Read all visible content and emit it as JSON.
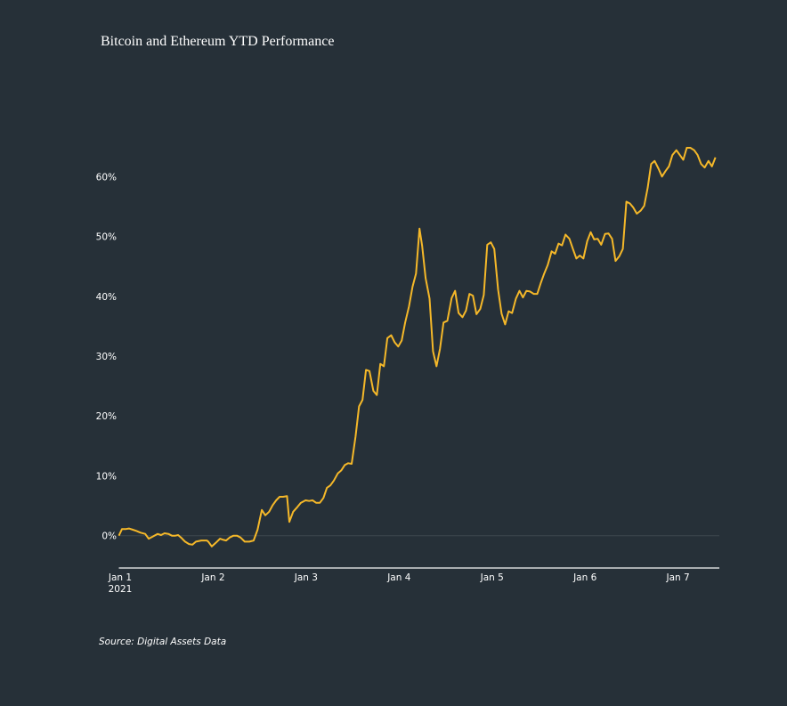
{
  "chart_data": {
    "type": "line",
    "title": "Bitcoin and Ethereum YTD Performance",
    "source": "Source: Digital Assets Data",
    "xlabel": "",
    "ylabel": "",
    "x_unit": "hours since Jan 1 2021 00:00",
    "xlim": [
      0,
      155
    ],
    "ylim": [
      -5.4,
      68
    ],
    "x_ticks": [
      {
        "value": 0,
        "label": "Jan 1",
        "sublabel": "2021"
      },
      {
        "value": 24,
        "label": "Jan 2"
      },
      {
        "value": 48,
        "label": "Jan 3"
      },
      {
        "value": 72,
        "label": "Jan 4"
      },
      {
        "value": 96,
        "label": "Jan 5"
      },
      {
        "value": 120,
        "label": "Jan 6"
      },
      {
        "value": 144,
        "label": "Jan 7"
      }
    ],
    "y_ticks": [
      {
        "value": 0,
        "label": "0%"
      },
      {
        "value": 10,
        "label": "10%"
      },
      {
        "value": 20,
        "label": "20%"
      },
      {
        "value": 30,
        "label": "30%"
      },
      {
        "value": 40,
        "label": "40%"
      },
      {
        "value": 50,
        "label": "50%"
      },
      {
        "value": 60,
        "label": "60%"
      }
    ],
    "grid": "zero line only",
    "legend": "none",
    "colors": {
      "background": "#263038",
      "line": "#f5b829",
      "axis": "#a9adb0",
      "zero_line": "#3d474e"
    },
    "series": [
      {
        "name": "Performance",
        "points": [
          [
            0,
            0
          ],
          [
            0.8,
            1.1
          ],
          [
            1.7,
            1.1
          ],
          [
            2.6,
            1.2
          ],
          [
            3.6,
            1.0
          ],
          [
            4.5,
            0.8
          ],
          [
            5.6,
            0.5
          ],
          [
            6.8,
            0.3
          ],
          [
            7.7,
            -0.5
          ],
          [
            8.9,
            -0.1
          ],
          [
            10.0,
            0.3
          ],
          [
            10.9,
            0.1
          ],
          [
            11.8,
            0.4
          ],
          [
            12.8,
            0.3
          ],
          [
            13.7,
            0
          ],
          [
            14.6,
            0
          ],
          [
            15.3,
            0.1
          ],
          [
            16.2,
            -0.4
          ],
          [
            17.1,
            -1.0
          ],
          [
            18.1,
            -1.4
          ],
          [
            19.0,
            -1.5
          ],
          [
            19.9,
            -1.0
          ],
          [
            21.3,
            -0.8
          ],
          [
            22.7,
            -0.8
          ],
          [
            23.1,
            -1.0
          ],
          [
            24.0,
            -1.8
          ],
          [
            25.0,
            -1.2
          ],
          [
            26.1,
            -0.5
          ],
          [
            27.0,
            -0.7
          ],
          [
            27.7,
            -0.8
          ],
          [
            28.6,
            -0.3
          ],
          [
            29.6,
            0
          ],
          [
            30.5,
            0
          ],
          [
            31.4,
            -0.3
          ],
          [
            32.5,
            -1.0
          ],
          [
            33.7,
            -1.0
          ],
          [
            34.8,
            -0.8
          ],
          [
            35.8,
            1.0
          ],
          [
            36.9,
            4.3
          ],
          [
            37.8,
            3.4
          ],
          [
            38.8,
            4.0
          ],
          [
            39.7,
            5.1
          ],
          [
            40.6,
            5.9
          ],
          [
            41.5,
            6.5
          ],
          [
            42.4,
            6.5
          ],
          [
            43.4,
            6.6
          ],
          [
            44.0,
            2.3
          ],
          [
            45.0,
            4.0
          ],
          [
            46.1,
            4.8
          ],
          [
            47.0,
            5.5
          ],
          [
            48.2,
            5.9
          ],
          [
            49.1,
            5.8
          ],
          [
            50.0,
            5.9
          ],
          [
            50.9,
            5.5
          ],
          [
            51.9,
            5.5
          ],
          [
            52.8,
            6.3
          ],
          [
            53.7,
            8.0
          ],
          [
            54.6,
            8.4
          ],
          [
            55.5,
            9.2
          ],
          [
            56.5,
            10.4
          ],
          [
            57.4,
            10.9
          ],
          [
            58.3,
            11.8
          ],
          [
            59.2,
            12.1
          ],
          [
            60.1,
            12.0
          ],
          [
            61.1,
            16.6
          ],
          [
            62.0,
            21.6
          ],
          [
            62.9,
            22.7
          ],
          [
            63.8,
            27.7
          ],
          [
            64.7,
            27.5
          ],
          [
            65.7,
            24.2
          ],
          [
            66.6,
            23.5
          ],
          [
            67.5,
            28.7
          ],
          [
            68.4,
            28.3
          ],
          [
            69.3,
            33.0
          ],
          [
            70.3,
            33.5
          ],
          [
            71.2,
            32.3
          ],
          [
            72.1,
            31.6
          ],
          [
            73.0,
            32.6
          ],
          [
            73.9,
            35.6
          ],
          [
            74.9,
            38.3
          ],
          [
            75.8,
            41.6
          ],
          [
            76.7,
            43.8
          ],
          [
            77.6,
            51.3
          ],
          [
            78.3,
            48.4
          ],
          [
            79.2,
            43.0
          ],
          [
            80.2,
            39.6
          ],
          [
            81.1,
            30.8
          ],
          [
            82.0,
            28.3
          ],
          [
            82.9,
            31.2
          ],
          [
            83.8,
            35.6
          ],
          [
            84.8,
            35.9
          ],
          [
            85.9,
            39.7
          ],
          [
            86.8,
            40.9
          ],
          [
            87.7,
            37.2
          ],
          [
            88.7,
            36.5
          ],
          [
            89.6,
            37.6
          ],
          [
            90.5,
            40.4
          ],
          [
            91.4,
            40.1
          ],
          [
            92.3,
            37.0
          ],
          [
            93.3,
            37.9
          ],
          [
            94.2,
            40.2
          ],
          [
            95.1,
            48.6
          ],
          [
            96.0,
            49.0
          ],
          [
            96.9,
            47.9
          ],
          [
            97.9,
            41.1
          ],
          [
            98.8,
            37.1
          ],
          [
            99.7,
            35.3
          ],
          [
            100.6,
            37.5
          ],
          [
            101.5,
            37.2
          ],
          [
            102.5,
            39.6
          ],
          [
            103.4,
            40.9
          ],
          [
            104.3,
            39.8
          ],
          [
            105.2,
            40.9
          ],
          [
            106.1,
            40.8
          ],
          [
            107.1,
            40.4
          ],
          [
            108.0,
            40.4
          ],
          [
            108.9,
            42.2
          ],
          [
            109.8,
            43.8
          ],
          [
            110.7,
            45.2
          ],
          [
            111.7,
            47.5
          ],
          [
            112.6,
            47.1
          ],
          [
            113.5,
            48.8
          ],
          [
            114.4,
            48.5
          ],
          [
            115.3,
            50.3
          ],
          [
            116.3,
            49.6
          ],
          [
            117.2,
            47.9
          ],
          [
            118.1,
            46.3
          ],
          [
            119.0,
            46.8
          ],
          [
            119.9,
            46.3
          ],
          [
            120.9,
            49.2
          ],
          [
            121.8,
            50.7
          ],
          [
            122.7,
            49.5
          ],
          [
            123.6,
            49.6
          ],
          [
            124.5,
            48.6
          ],
          [
            125.5,
            50.4
          ],
          [
            126.4,
            50.5
          ],
          [
            127.3,
            49.6
          ],
          [
            128.2,
            45.9
          ],
          [
            129.2,
            46.7
          ],
          [
            130.1,
            47.9
          ],
          [
            131.0,
            55.8
          ],
          [
            131.9,
            55.5
          ],
          [
            132.8,
            54.8
          ],
          [
            133.7,
            53.8
          ],
          [
            134.7,
            54.3
          ],
          [
            135.6,
            55.1
          ],
          [
            136.5,
            58.1
          ],
          [
            137.4,
            62.1
          ],
          [
            138.3,
            62.6
          ],
          [
            139.3,
            61.3
          ],
          [
            140.2,
            60.0
          ],
          [
            141.1,
            60.9
          ],
          [
            142.0,
            61.7
          ],
          [
            142.9,
            63.6
          ],
          [
            143.9,
            64.4
          ],
          [
            144.8,
            63.6
          ],
          [
            145.7,
            62.8
          ],
          [
            146.6,
            64.8
          ],
          [
            147.5,
            64.8
          ],
          [
            148.5,
            64.4
          ],
          [
            149.4,
            63.6
          ],
          [
            150.3,
            62.1
          ],
          [
            151.2,
            61.5
          ],
          [
            152.2,
            62.6
          ],
          [
            153.1,
            61.7
          ],
          [
            154.0,
            63.2
          ]
        ]
      }
    ]
  }
}
